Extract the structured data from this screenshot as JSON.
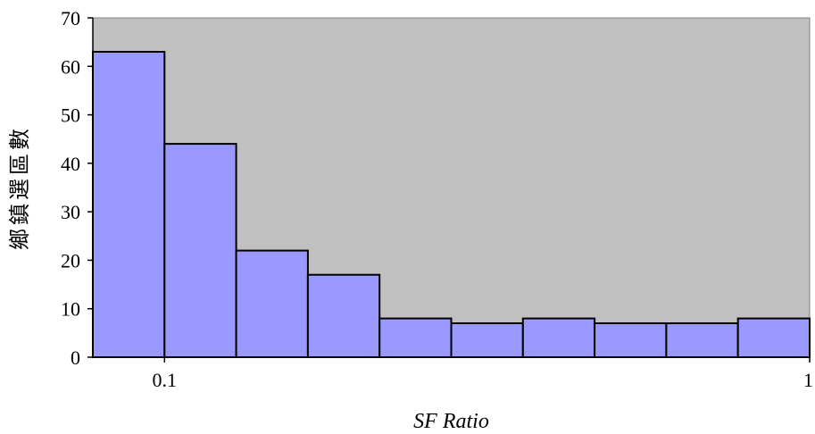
{
  "chart_data": {
    "type": "bar",
    "xlabel": "SF Ratio",
    "ylabel": "鄉鎮選區數",
    "ylim": [
      0,
      70
    ],
    "yticks": [
      0,
      10,
      20,
      30,
      40,
      50,
      60,
      70
    ],
    "x_tick_labels": [
      "0.1",
      "1"
    ],
    "bins": 10,
    "values": [
      63,
      44,
      22,
      17,
      8,
      7,
      8,
      7,
      7,
      8
    ],
    "colors": {
      "plot_background": "#c0c0c0",
      "bar_fill": "#9999ff",
      "bar_stroke": "#000000"
    },
    "grid": false,
    "legend": "none"
  }
}
